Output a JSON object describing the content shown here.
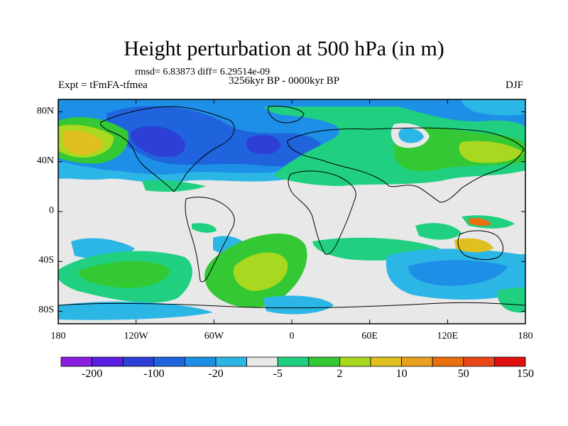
{
  "title": "Height perturbation at 500 hPa (in m)",
  "stats_line": "rmsd= 6.83873 diff= 6.29514e-09",
  "period_line": "3256kyr BP - 0000kyr BP",
  "experiment_label": "Expt = tFmFA-tfmea",
  "season_label": "DJF",
  "map": {
    "projection": "cylindrical equidistant",
    "lon_range": [
      -180,
      180
    ],
    "lat_range": [
      -90,
      90
    ],
    "y_tick_labels": [
      "80N",
      "40N",
      "0",
      "40S",
      "80S"
    ],
    "y_tick_lats": [
      80,
      40,
      0,
      -40,
      -80
    ],
    "x_tick_labels": [
      "180",
      "120W",
      "60W",
      "0",
      "60E",
      "120E",
      "180"
    ],
    "x_tick_lons": [
      -180,
      -120,
      -60,
      0,
      60,
      120,
      180
    ]
  },
  "colorbar": {
    "colors": [
      "#8a1ce0",
      "#5a1fe0",
      "#2d3fd6",
      "#1f64dc",
      "#1e8fe6",
      "#2cb6e6",
      "#e8e8e8",
      "#20d080",
      "#34c834",
      "#a8d820",
      "#e0c020",
      "#e8a020",
      "#e87010",
      "#e84818",
      "#e01010"
    ],
    "labels": [
      "-200",
      "-100",
      "-20",
      "-5",
      "2",
      "10",
      "50",
      "150"
    ],
    "label_boundaries": [
      1,
      3,
      5,
      7,
      9,
      11,
      13,
      15
    ]
  }
}
